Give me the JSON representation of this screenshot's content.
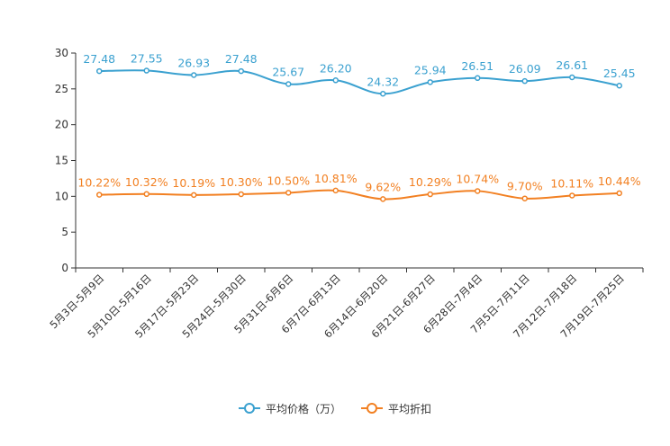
{
  "chart_data": {
    "type": "line",
    "categories": [
      "5月3日-5月9日",
      "5月10日-5月16日",
      "5月17日-5月23日",
      "5月24日-5月30日",
      "5月31日-6月6日",
      "6月7日-6月13日",
      "6月14日-6月20日",
      "6月21日-6月27日",
      "6月28日-7月4日",
      "7月5日-7月11日",
      "7月12日-7月18日",
      "7月19日-7月25日"
    ],
    "series": [
      {
        "name": "平均价格（万）",
        "color": "#3ba1d0",
        "values": [
          27.48,
          27.55,
          26.93,
          27.48,
          25.67,
          26.2,
          24.32,
          25.94,
          26.51,
          26.09,
          26.61,
          25.45
        ],
        "labels": [
          "27.48",
          "27.55",
          "26.93",
          "27.48",
          "25.67",
          "26.20",
          "24.32",
          "25.94",
          "26.51",
          "26.09",
          "26.61",
          "25.45"
        ]
      },
      {
        "name": "平均折扣",
        "color": "#f28022",
        "values": [
          10.22,
          10.32,
          10.19,
          10.3,
          10.5,
          10.81,
          9.62,
          10.29,
          10.74,
          9.7,
          10.11,
          10.44
        ],
        "labels": [
          "10.22%",
          "10.32%",
          "10.19%",
          "10.30%",
          "10.50%",
          "10.81%",
          "9.62%",
          "10.29%",
          "10.74%",
          "9.70%",
          "10.11%",
          "10.44%"
        ]
      }
    ],
    "ylim": [
      0,
      30
    ],
    "yticks": [
      "0",
      "5",
      "10",
      "15",
      "20",
      "25",
      "30"
    ],
    "smooth": true,
    "legend_position": "bottom-center"
  }
}
